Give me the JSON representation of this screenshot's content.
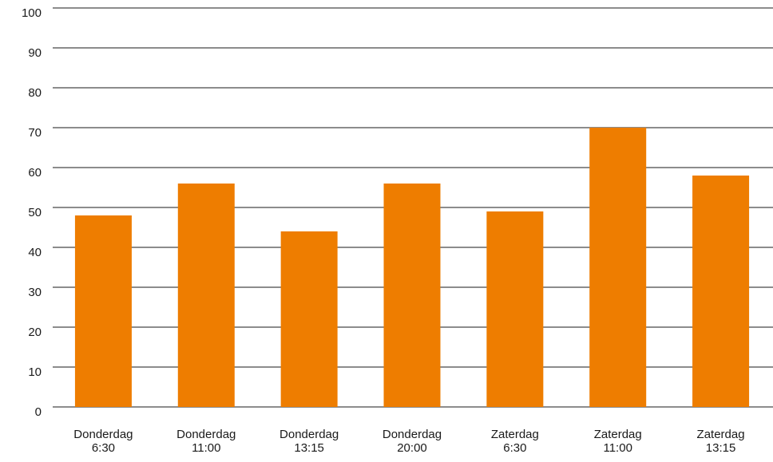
{
  "chart_data": {
    "type": "bar",
    "title": "",
    "xlabel": "",
    "ylabel": "",
    "categories": [
      [
        "Donderdag",
        "6:30"
      ],
      [
        "Donderdag",
        "11:00"
      ],
      [
        "Donderdag",
        "13:15"
      ],
      [
        "Donderdag",
        "20:00"
      ],
      [
        "Zaterdag",
        "6:30"
      ],
      [
        "Zaterdag",
        "11:00"
      ],
      [
        "Zaterdag",
        "13:15"
      ]
    ],
    "values": [
      48,
      56,
      44,
      56,
      49,
      70,
      58
    ],
    "ylim": [
      0,
      100
    ],
    "yticks": [
      "0",
      "10",
      "20",
      "30",
      "40",
      "50",
      "60",
      "70",
      "80",
      "90",
      "100"
    ],
    "grid": true,
    "bar_color": "#EE7D00",
    "grid_color": "#1a1a1a"
  }
}
